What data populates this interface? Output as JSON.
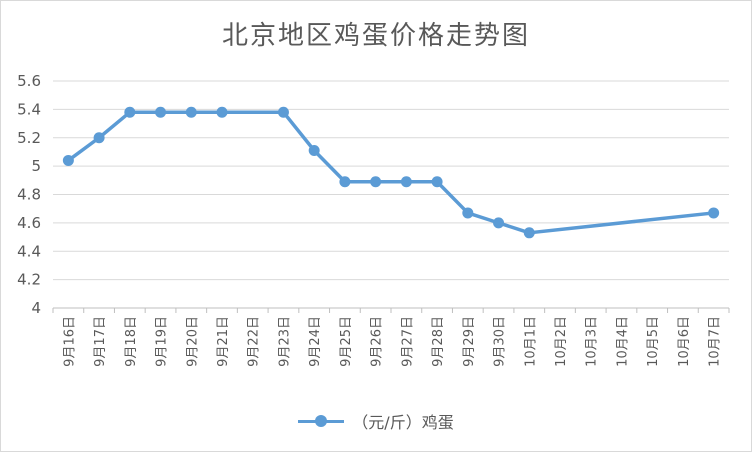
{
  "chart_data": {
    "type": "line",
    "title": "北京地区鸡蛋价格走势图",
    "categories": [
      "9月16日",
      "9月17日",
      "9月18日",
      "9月19日",
      "9月20日",
      "9月21日",
      "9月22日",
      "9月23日",
      "9月24日",
      "9月25日",
      "9月26日",
      "9月27日",
      "9月28日",
      "9月29日",
      "9月30日",
      "10月1日",
      "10月2日",
      "10月3日",
      "10月4日",
      "10月5日",
      "10月6日",
      "10月7日"
    ],
    "series": [
      {
        "name": "（元/斤）鸡蛋",
        "color": "#5b9bd5",
        "values": [
          5.04,
          5.2,
          5.38,
          5.38,
          5.38,
          5.38,
          null,
          5.38,
          5.11,
          4.89,
          4.89,
          4.89,
          4.89,
          4.67,
          4.6,
          4.53,
          null,
          null,
          null,
          null,
          null,
          4.67
        ]
      }
    ],
    "ylim": [
      4,
      5.6
    ],
    "yticks": [
      "4",
      "4.2",
      "4.4",
      "4.6",
      "4.8",
      "5",
      "5.2",
      "5.4",
      "5.6"
    ],
    "grid": true,
    "legend_position": "bottom",
    "xlabel": "",
    "ylabel": ""
  }
}
